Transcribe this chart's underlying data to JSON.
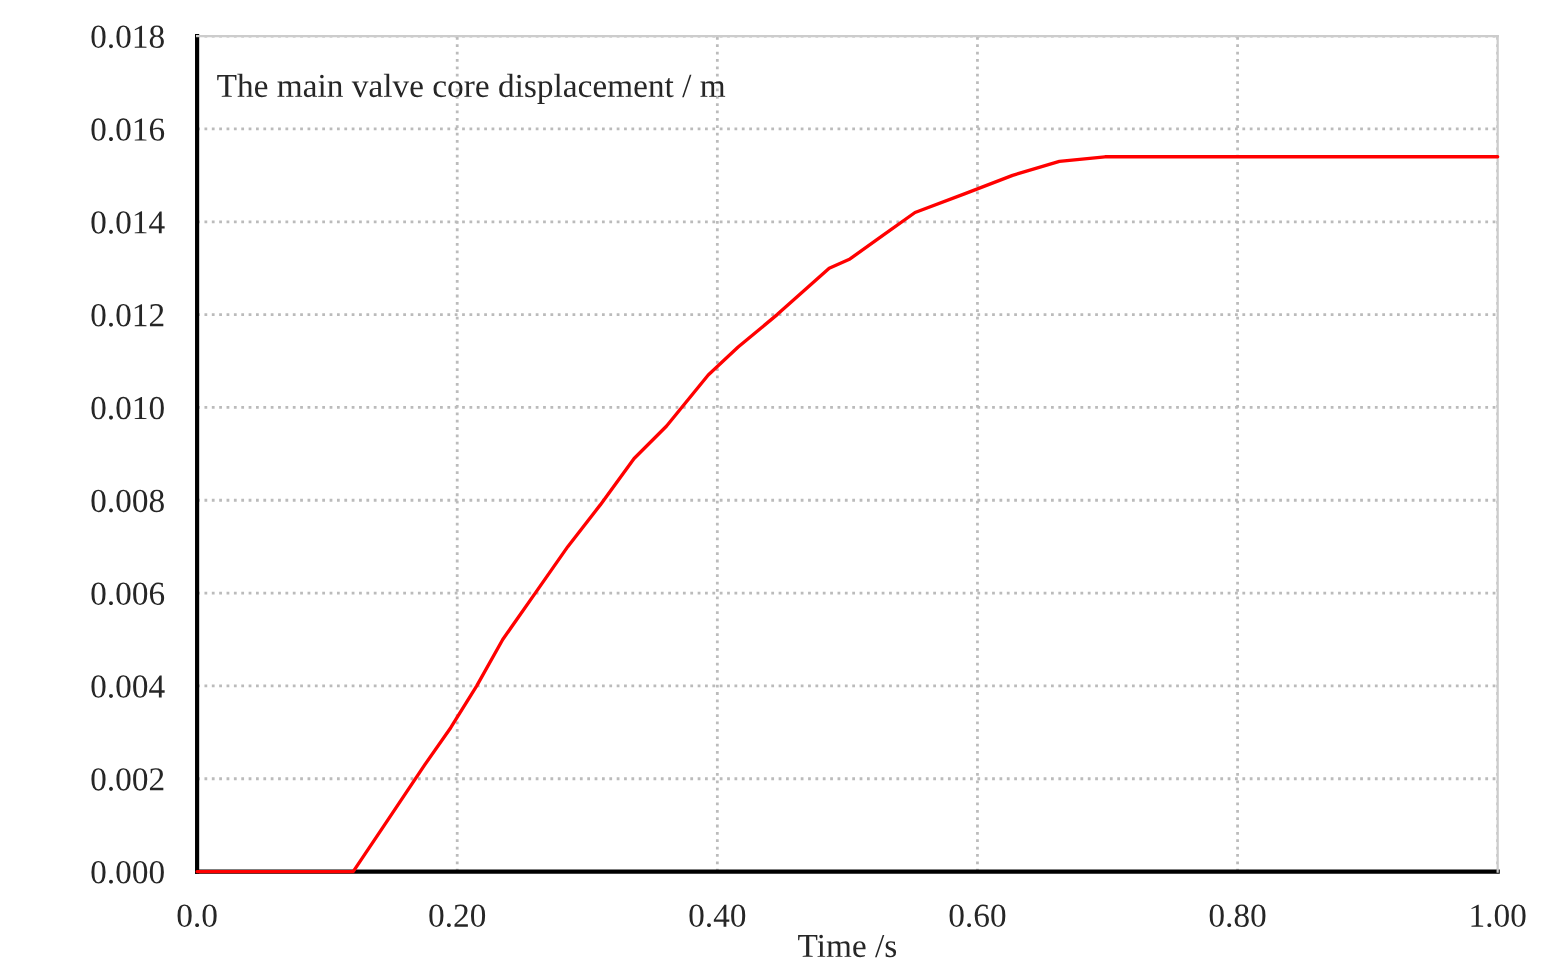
{
  "chart_data": {
    "type": "line",
    "xlabel": "Time /s",
    "annotations": [
      "The main valve core displacement / m"
    ],
    "series": [
      {
        "color": "#ff0000",
        "x": [
          0.0,
          0.12,
          0.144,
          0.175,
          0.195,
          0.215,
          0.235,
          0.26,
          0.285,
          0.31,
          0.336,
          0.361,
          0.393,
          0.416,
          0.446,
          0.486,
          0.502,
          0.527,
          0.552,
          0.59,
          0.627,
          0.663,
          0.698,
          1.0
        ],
        "values": [
          0.0,
          0.0,
          0.001,
          0.0023,
          0.0031,
          0.004,
          0.005,
          0.006,
          0.007,
          0.0079,
          0.0089,
          0.0096,
          0.0107,
          0.0113,
          0.012,
          0.013,
          0.0132,
          0.0137,
          0.0142,
          0.0146,
          0.015,
          0.0153,
          0.0154,
          0.0154
        ]
      }
    ],
    "xlim": [
      0,
      1.0
    ],
    "xticks": [
      {
        "value": 0,
        "label": "0.0"
      },
      {
        "value": 0.2,
        "label": "0.20"
      },
      {
        "value": 0.4,
        "label": "0.40"
      },
      {
        "value": 0.6,
        "label": "0.60"
      },
      {
        "value": 0.8,
        "label": "0.80"
      },
      {
        "value": 1.0,
        "label": "1.00"
      }
    ],
    "ylim": [
      0,
      0.018
    ],
    "yticks": [
      {
        "value": 0,
        "label": "0.000"
      },
      {
        "value": 0.002,
        "label": "0.002"
      },
      {
        "value": 0.004,
        "label": "0.004"
      },
      {
        "value": 0.006,
        "label": "0.006"
      },
      {
        "value": 0.008,
        "label": "0.008"
      },
      {
        "value": 0.01,
        "label": "0.010"
      },
      {
        "value": 0.012,
        "label": "0.012"
      },
      {
        "value": 0.014,
        "label": "0.014"
      },
      {
        "value": 0.016,
        "label": "0.016"
      },
      {
        "value": 0.018,
        "label": "0.018"
      }
    ],
    "grid": true,
    "line_style": "solid",
    "marker": "none",
    "legend": false
  }
}
